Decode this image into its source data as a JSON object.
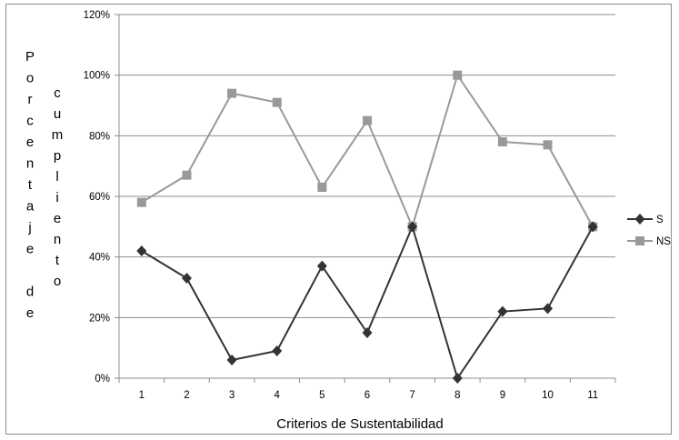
{
  "chart_data": {
    "type": "line",
    "xlabel": "Criterios de Sustentabilidad",
    "ylabel_col1": [
      "P",
      "o",
      "r",
      "c",
      "e",
      "n",
      "t",
      "a",
      "j",
      "e",
      "",
      "d",
      "e"
    ],
    "ylabel_col2": [
      "c",
      "u",
      "m",
      "p",
      "l",
      "i",
      "e",
      "n",
      "t",
      "o"
    ],
    "categories": [
      "1",
      "2",
      "3",
      "4",
      "5",
      "6",
      "7",
      "8",
      "9",
      "10",
      "11"
    ],
    "ylim": [
      0,
      120
    ],
    "yticks": [
      "0%",
      "20%",
      "40%",
      "60%",
      "80%",
      "100%",
      "120%"
    ],
    "ytick_values": [
      0,
      20,
      40,
      60,
      80,
      100,
      120
    ],
    "grid": "horizontal",
    "legend_position": "right",
    "series": [
      {
        "name": "S",
        "marker": "diamond",
        "color": "#333333",
        "values": [
          42,
          33,
          6,
          9,
          37,
          15,
          50,
          0,
          22,
          23,
          50
        ]
      },
      {
        "name": "NS",
        "marker": "square",
        "color": "#999999",
        "values": [
          58,
          67,
          94,
          91,
          63,
          85,
          50,
          100,
          78,
          77,
          50
        ]
      }
    ]
  }
}
